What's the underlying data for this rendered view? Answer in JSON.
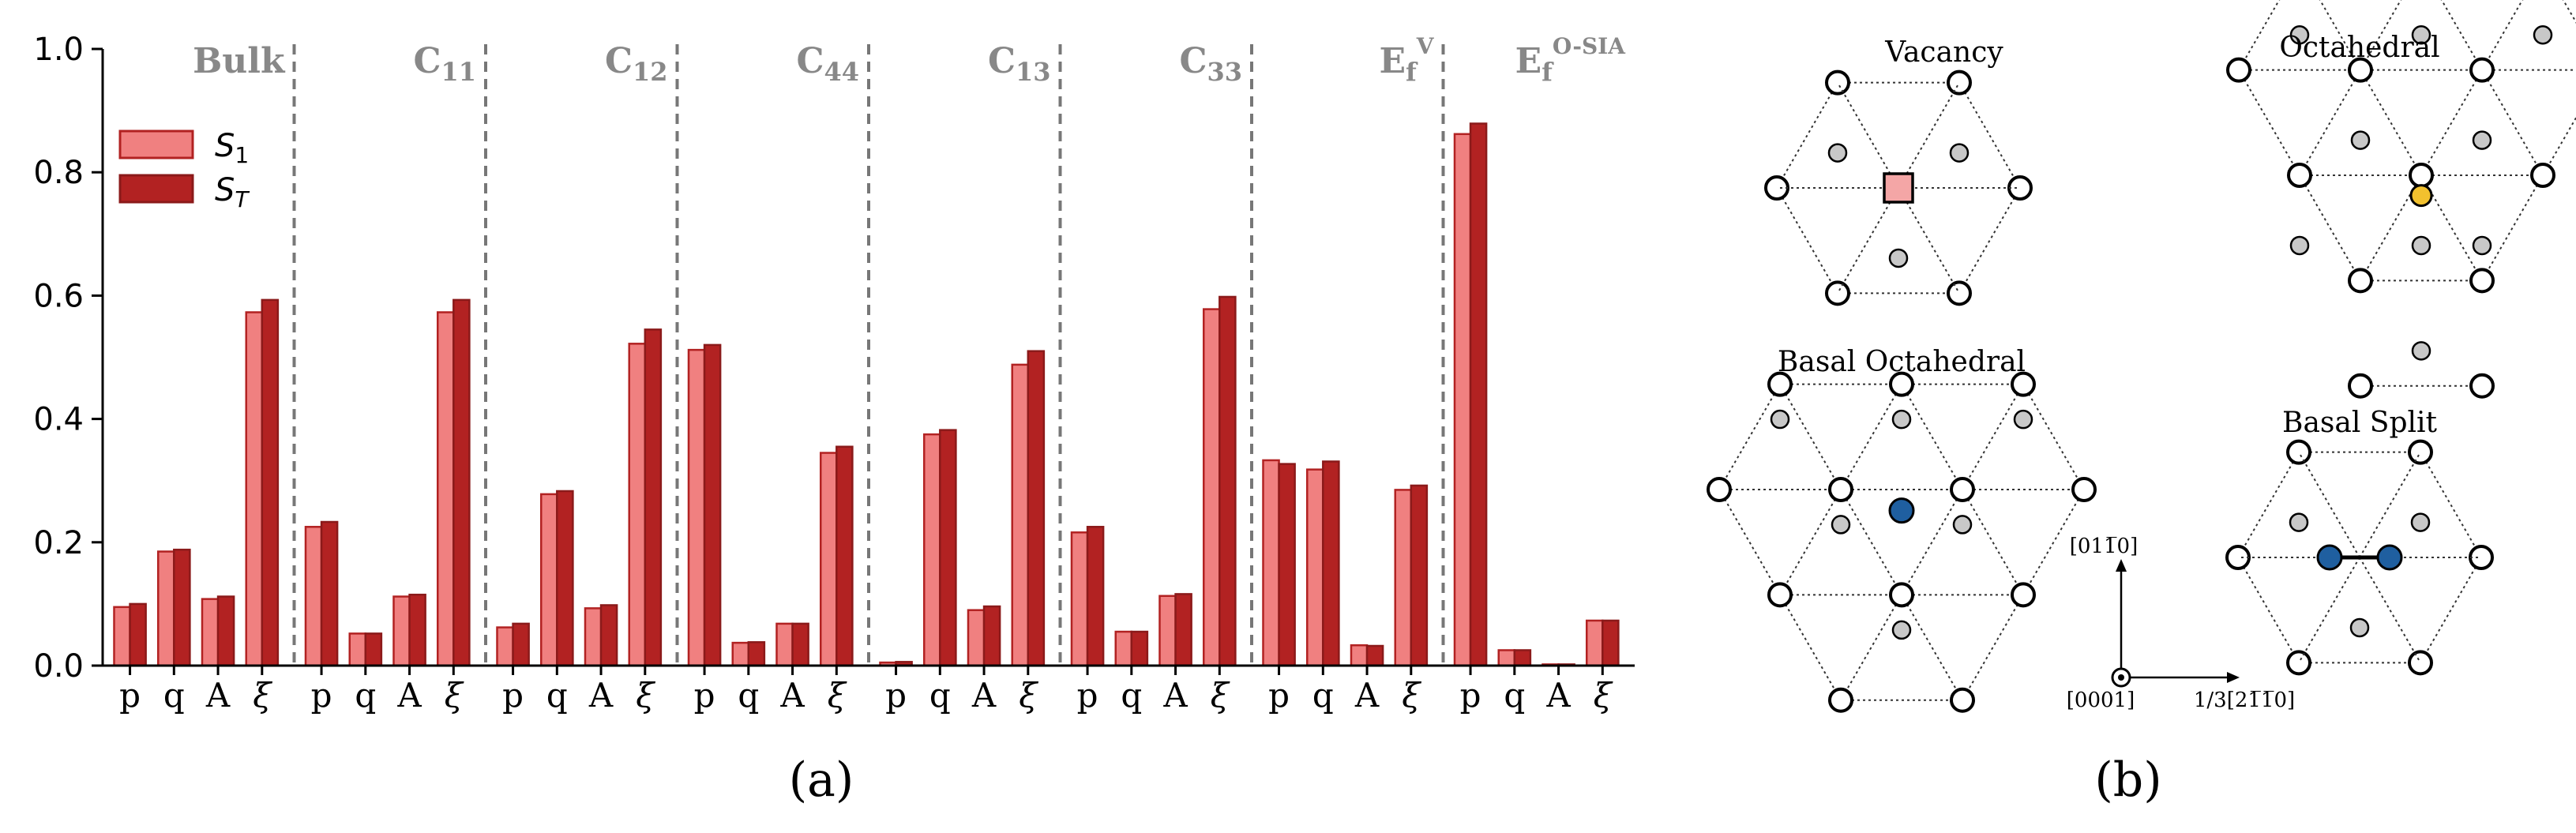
{
  "panel_labels": {
    "a": "(a)",
    "b": "(b)"
  },
  "colors": {
    "s1": "#f08080",
    "s1_edge": "#b22222",
    "st": "#b22222",
    "st_edge": "#8b1a1a",
    "vacancy": "#f4a6a6",
    "octa": "#f2c12e",
    "blue": "#1f5fa0",
    "grey": "#c8c8c8"
  },
  "chart_data": {
    "type": "bar",
    "ylim": [
      0,
      1.0
    ],
    "yticks": [
      "0.0",
      "0.2",
      "0.4",
      "0.6",
      "0.8",
      "1.0"
    ],
    "legend": {
      "position": "top-left",
      "s1": "S",
      "s1_sub": "1",
      "st": "S",
      "st_sub": "T"
    },
    "grid": false,
    "groups": [
      {
        "label": "Bulk",
        "sup": "",
        "sub": "",
        "categories": [
          "p",
          "q",
          "A",
          "ξ"
        ],
        "S1": [
          0.095,
          0.185,
          0.108,
          0.573
        ],
        "ST": [
          0.1,
          0.188,
          0.112,
          0.593
        ]
      },
      {
        "label": "C",
        "sub": "11",
        "sup": "",
        "categories": [
          "p",
          "q",
          "A",
          "ξ"
        ],
        "S1": [
          0.225,
          0.052,
          0.112,
          0.573
        ],
        "ST": [
          0.233,
          0.052,
          0.115,
          0.593
        ]
      },
      {
        "label": "C",
        "sub": "12",
        "sup": "",
        "categories": [
          "p",
          "q",
          "A",
          "ξ"
        ],
        "S1": [
          0.062,
          0.278,
          0.093,
          0.522
        ],
        "ST": [
          0.068,
          0.283,
          0.098,
          0.545
        ]
      },
      {
        "label": "C",
        "sub": "44",
        "sup": "",
        "categories": [
          "p",
          "q",
          "A",
          "ξ"
        ],
        "S1": [
          0.512,
          0.037,
          0.068,
          0.345
        ],
        "ST": [
          0.52,
          0.038,
          0.068,
          0.355
        ]
      },
      {
        "label": "C",
        "sub": "13",
        "sup": "",
        "categories": [
          "p",
          "q",
          "A",
          "ξ"
        ],
        "S1": [
          0.005,
          0.375,
          0.09,
          0.488
        ],
        "ST": [
          0.006,
          0.382,
          0.096,
          0.51
        ]
      },
      {
        "label": "C",
        "sub": "33",
        "sup": "",
        "categories": [
          "p",
          "q",
          "A",
          "ξ"
        ],
        "S1": [
          0.216,
          0.055,
          0.113,
          0.578
        ],
        "ST": [
          0.225,
          0.055,
          0.116,
          0.598
        ]
      },
      {
        "label": "E",
        "sub": "f",
        "sup": "V",
        "categories": [
          "p",
          "q",
          "A",
          "ξ"
        ],
        "S1": [
          0.333,
          0.318,
          0.033,
          0.285
        ],
        "ST": [
          0.327,
          0.331,
          0.032,
          0.292
        ]
      },
      {
        "label": "E",
        "sub": "f",
        "sup": "O-SIA",
        "categories": [
          "p",
          "q",
          "A",
          "ξ"
        ],
        "S1": [
          0.862,
          0.025,
          0.002,
          0.073
        ],
        "ST": [
          0.879,
          0.025,
          0.002,
          0.073
        ]
      }
    ]
  },
  "structures": {
    "vacancy": "Vacancy",
    "octahedral": "Octahedral",
    "basal_octahedral": "Basal Octahedral",
    "basal_split": "Basal Split"
  },
  "axes_note": {
    "up": "[011̅0]",
    "right": "1/3[21̅1̅0]",
    "origin": "[0001]"
  }
}
